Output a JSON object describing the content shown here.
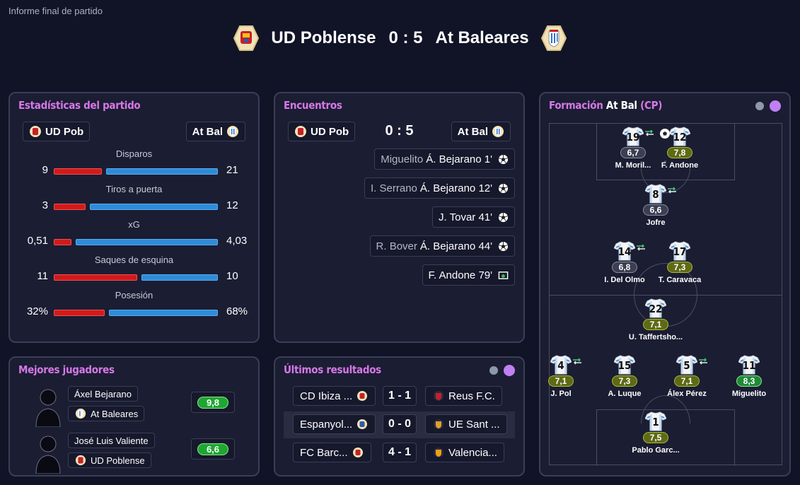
{
  "report_label": "Informe final de partido",
  "header": {
    "home": "UD Poblense",
    "score": "0 : 5",
    "away": "At Baleares"
  },
  "stats": {
    "title": "Estadísticas del partido",
    "home_chip": "UD Pob",
    "away_chip": "At Bal",
    "rows": [
      {
        "label": "Disparos",
        "home": "9",
        "away": "21",
        "home_frac": 0.3
      },
      {
        "label": "Tiros a puerta",
        "home": "3",
        "away": "12",
        "home_frac": 0.2
      },
      {
        "label": "xG",
        "home": "0,51",
        "away": "4,03",
        "home_frac": 0.11
      },
      {
        "label": "Saques de esquina",
        "home": "11",
        "away": "10",
        "home_frac": 0.52
      },
      {
        "label": "Posesión",
        "home": "32%",
        "away": "68%",
        "home_frac": 0.32
      }
    ]
  },
  "encounters": {
    "title": "Encuentros",
    "home_chip": "UD Pob",
    "away_chip": "At Bal",
    "score": "0 : 5",
    "goals": [
      {
        "assist": "Miguelito",
        "scorer": "Á. Bejarano 1'",
        "icon": "ball-icon"
      },
      {
        "assist": "I. Serrano",
        "scorer": "Á. Bejarano 12'",
        "icon": "ball-icon"
      },
      {
        "assist": "",
        "scorer": "J. Tovar 41'",
        "icon": "ball-icon"
      },
      {
        "assist": "R. Bover",
        "scorer": "Á. Bejarano 44'",
        "icon": "ball-icon"
      },
      {
        "assist": "",
        "scorer": "F. Andone 79'",
        "icon": "penalty-icon"
      }
    ]
  },
  "formation": {
    "title_prefix": "Formación",
    "team": "At Bal",
    "tag": "(CP)",
    "players": [
      {
        "num": "19",
        "rating": "6,7",
        "name": "M. Moril...",
        "color": "g"
      },
      {
        "num": "12",
        "rating": "7,8",
        "name": "F. Andone",
        "color": "o"
      },
      {
        "num": "8",
        "rating": "6,6",
        "name": "Jofre",
        "color": "g"
      },
      {
        "num": "14",
        "rating": "6,8",
        "name": "I. Del Olmo",
        "color": "g"
      },
      {
        "num": "17",
        "rating": "7,3",
        "name": "T. Caravaca",
        "color": "o"
      },
      {
        "num": "22",
        "rating": "7,1",
        "name": "U. Taffertsho...",
        "color": "o"
      },
      {
        "num": "4",
        "rating": "7,1",
        "name": "J. Pol",
        "color": "o"
      },
      {
        "num": "15",
        "rating": "7,3",
        "name": "A. Luque",
        "color": "o"
      },
      {
        "num": "5",
        "rating": "7,1",
        "name": "Álex Pérez",
        "color": "o"
      },
      {
        "num": "11",
        "rating": "8,3",
        "name": "Miguelito",
        "color": "gr"
      },
      {
        "num": "1",
        "rating": "7,5",
        "name": "Pablo Garc...",
        "color": "o"
      }
    ]
  },
  "best_players": {
    "title": "Mejores jugadores",
    "players": [
      {
        "name": "Áxel Bejarano",
        "team": "At Baleares",
        "rating": "9,8"
      },
      {
        "name": "José Luis Valiente",
        "team": "UD Poblense",
        "rating": "6,6"
      }
    ]
  },
  "results": {
    "title": "Últimos resultados",
    "rows": [
      {
        "home": "CD Ibiza ...",
        "score": "1 - 1",
        "away": "Reus F.C."
      },
      {
        "home": "Espanyol...",
        "score": "0 - 0",
        "away": "UE Sant ..."
      },
      {
        "home": "FC Barc...",
        "score": "4 - 1",
        "away": "Valencia..."
      }
    ]
  },
  "colors": {
    "accent": "#d778e6",
    "home_bar": "#d11b1b",
    "away_bar": "#2f8bd8",
    "rating_high": "#1ea633"
  }
}
